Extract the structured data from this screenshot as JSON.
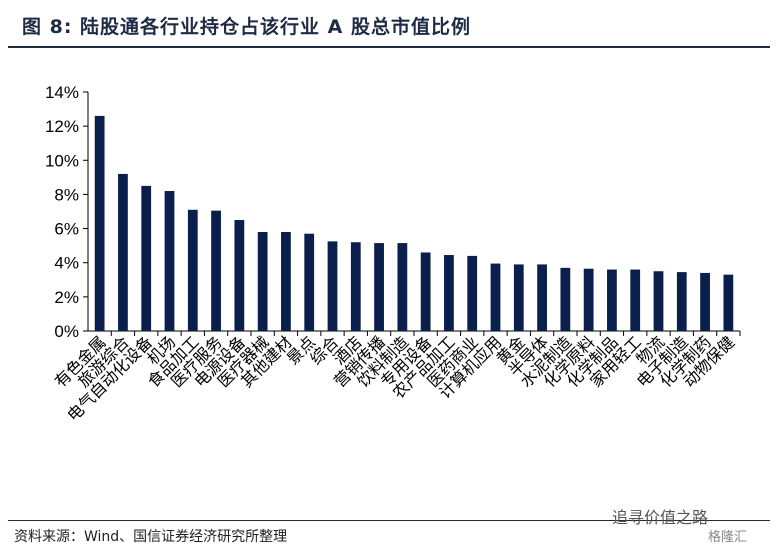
{
  "header": {
    "title": "图 8:  陆股通各行业持仓占该行业 A 股总市值比例"
  },
  "footer": {
    "source": "资料来源：Wind、国信证券经济研究所整理",
    "watermark": "追寻价值之路",
    "watermark_logo": "格隆汇"
  },
  "colors": {
    "bar": "#0b1f4d",
    "title": "#1f2a44"
  },
  "chart_data": {
    "type": "bar",
    "title": "",
    "xlabel": "",
    "ylabel": "",
    "ylim": [
      0,
      14
    ],
    "yticks": [
      "0%",
      "2%",
      "4%",
      "6%",
      "8%",
      "10%",
      "12%",
      "14%"
    ],
    "ytick_values": [
      0,
      2,
      4,
      6,
      8,
      10,
      12,
      14
    ],
    "grid": false,
    "categories": [
      "有色金属",
      "旅游综合",
      "电气自动化设备",
      "机场",
      "食品加工",
      "医疗服务",
      "电源设备",
      "医疗器械",
      "其他建材",
      "景点",
      "综合",
      "酒店",
      "营销传播",
      "饮料制造",
      "专用设备",
      "农产品加工",
      "医药商业",
      "计算机应用",
      "黄金",
      "半导体",
      "水泥制造",
      "化学原料",
      "化学制品",
      "家用轻工",
      "物流",
      "电子制造",
      "化学制药",
      "动物保健"
    ],
    "values": [
      12.6,
      9.2,
      8.5,
      8.2,
      7.1,
      7.05,
      6.5,
      5.8,
      5.8,
      5.7,
      5.25,
      5.2,
      5.15,
      5.15,
      4.6,
      4.45,
      4.4,
      3.95,
      3.9,
      3.9,
      3.7,
      3.65,
      3.6,
      3.6,
      3.5,
      3.45,
      3.4,
      3.3
    ]
  }
}
